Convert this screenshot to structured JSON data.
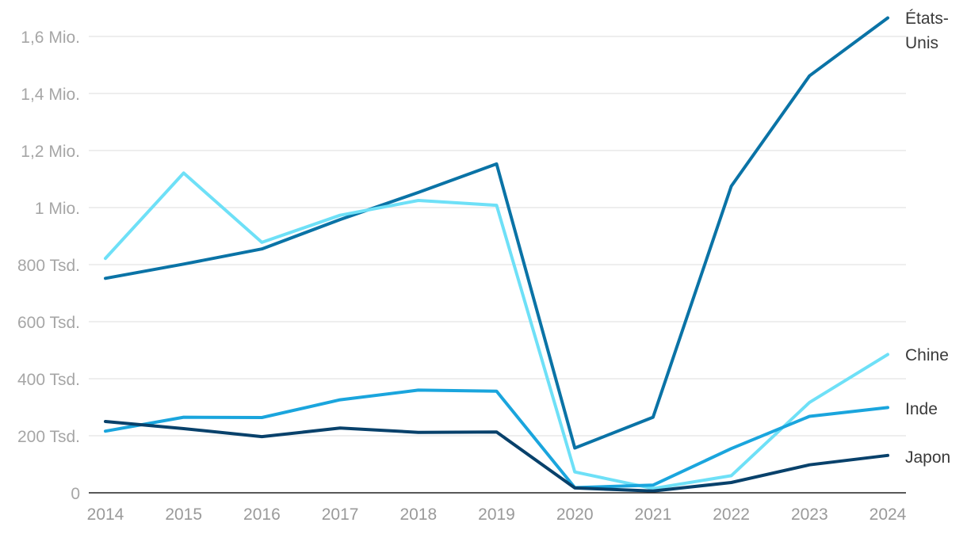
{
  "chart_data": {
    "type": "line",
    "title": "",
    "xlabel": "",
    "ylabel": "",
    "x": [
      "2014",
      "2015",
      "2016",
      "2017",
      "2018",
      "2019",
      "2020",
      "2021",
      "2022",
      "2023",
      "2024"
    ],
    "ylim": [
      0,
      1650000
    ],
    "yticks": [
      {
        "value": 0,
        "label": "0"
      },
      {
        "value": 200000,
        "label": "200 Tsd."
      },
      {
        "value": 400000,
        "label": "400 Tsd."
      },
      {
        "value": 600000,
        "label": "600 Tsd."
      },
      {
        "value": 800000,
        "label": "800 Tsd."
      },
      {
        "value": 1000000,
        "label": "1 Mio."
      },
      {
        "value": 1200000,
        "label": "1,2 Mio."
      },
      {
        "value": 1400000,
        "label": "1,4 Mio."
      },
      {
        "value": 1600000,
        "label": "1,6 Mio."
      }
    ],
    "grid": true,
    "legend": "inline-right",
    "series": [
      {
        "name": "États-Unis",
        "label_lines": [
          "États-",
          "Unis"
        ],
        "color": "#0a73a6",
        "values": [
          752000,
          802000,
          855000,
          958000,
          1053000,
          1153000,
          157000,
          265000,
          1075000,
          1462000,
          1665000
        ]
      },
      {
        "name": "Chine",
        "label_lines": [
          "Chine"
        ],
        "color": "#6ee0f7",
        "values": [
          822000,
          1121000,
          878000,
          973000,
          1025000,
          1008000,
          73000,
          15000,
          60000,
          317000,
          485000
        ]
      },
      {
        "name": "Inde",
        "label_lines": [
          "Inde"
        ],
        "color": "#1aa5dd",
        "values": [
          216000,
          265000,
          264000,
          326000,
          360000,
          356000,
          18000,
          27000,
          155000,
          268000,
          299000
        ]
      },
      {
        "name": "Japon",
        "label_lines": [
          "Japon"
        ],
        "color": "#08416b",
        "values": [
          250000,
          225000,
          197000,
          227000,
          212000,
          213000,
          17000,
          6000,
          36000,
          98000,
          131000
        ]
      }
    ]
  }
}
